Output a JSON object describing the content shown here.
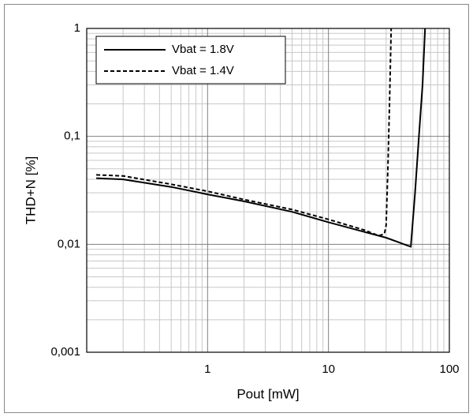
{
  "chart_data": {
    "type": "line",
    "xlabel": "Pout [mW]",
    "ylabel": "THD+N [%]",
    "xscale": "log",
    "yscale": "log",
    "grid": true,
    "minor_grid": true,
    "legend": "upper left",
    "xlim": [
      0.1,
      100
    ],
    "xticks": [
      1,
      10,
      100
    ],
    "ylim": [
      0.001,
      1
    ],
    "yticks": [
      {
        "value": 0.001,
        "label": "0,001"
      },
      {
        "value": 0.01,
        "label": "0,01"
      },
      {
        "value": 0.1,
        "label": "0,1"
      },
      1
    ],
    "series": [
      {
        "name": "Vbat = 1.8V",
        "color": "#000000",
        "style": "solid",
        "x": [
          0.12,
          0.2,
          0.5,
          1,
          2,
          5,
          10,
          20,
          30,
          48,
          52,
          56,
          60,
          63
        ],
        "values": [
          0.041,
          0.04,
          0.034,
          0.029,
          0.025,
          0.02,
          0.016,
          0.013,
          0.0115,
          0.0095,
          0.03,
          0.1,
          0.3,
          1
        ]
      },
      {
        "name": "Vbat = 1.4V",
        "color": "#000000",
        "style": "dashed",
        "x": [
          0.12,
          0.2,
          0.5,
          1,
          2,
          5,
          10,
          20,
          26,
          29,
          30,
          31,
          32,
          33
        ],
        "values": [
          0.044,
          0.043,
          0.036,
          0.031,
          0.026,
          0.021,
          0.017,
          0.0135,
          0.012,
          0.0125,
          0.015,
          0.05,
          0.2,
          1
        ]
      }
    ]
  }
}
